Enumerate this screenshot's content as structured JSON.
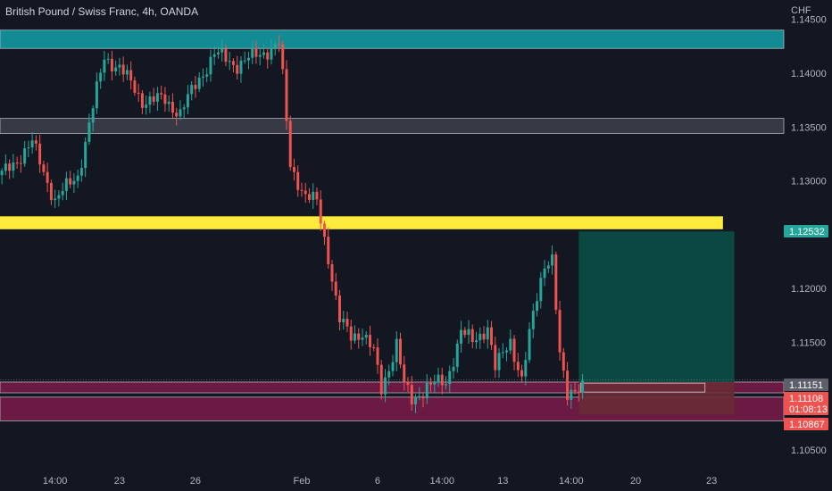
{
  "header": {
    "title": "British Pound / Swiss Franc, 4h, OANDA",
    "currency": "CHF"
  },
  "chart_data": {
    "type": "candlestick",
    "ylim": [
      1.1035,
      1.1468
    ],
    "y_ticks": [
      "1.14500",
      "1.14000",
      "1.13500",
      "1.13000",
      "1.12000",
      "1.11500",
      "1.10500"
    ],
    "y_tick_values": [
      1.145,
      1.14,
      1.135,
      1.13,
      1.12,
      1.115,
      1.105
    ],
    "x_ticks": [
      {
        "label": "14:00",
        "bar": 14
      },
      {
        "label": "23",
        "bar": 31
      },
      {
        "label": "26",
        "bar": 51
      },
      {
        "label": "Feb",
        "bar": 79
      },
      {
        "label": "6",
        "bar": 99
      },
      {
        "label": "14:00",
        "bar": 116
      },
      {
        "label": "13",
        "bar": 132
      },
      {
        "label": "14:00",
        "bar": 150
      },
      {
        "label": "20",
        "bar": 167
      },
      {
        "label": "23",
        "bar": 187
      }
    ],
    "bar_count": 207,
    "colors": {
      "up": "#26a69a",
      "down": "#ef5350",
      "background": "#131722",
      "resistance_zone": "#138b95",
      "mid_zone": "#363a45",
      "yellow_zone": "#ffeb3b",
      "support_zone": "#6b1a44",
      "target_zone": "#0b4b45",
      "stop_zone": "#6a2b35"
    },
    "zones": [
      {
        "name": "resistance",
        "from": 1.1423,
        "to": 1.144,
        "x_end_bar": 207
      },
      {
        "name": "mid",
        "from": 1.1344,
        "to": 1.1358,
        "x_end_bar": 207
      },
      {
        "name": "key-level",
        "from": 1.1255,
        "to": 1.1267,
        "x_end_bar": 190
      },
      {
        "name": "support-upper",
        "from": 1.1103,
        "to": 1.1113,
        "x_end_bar": 207
      },
      {
        "name": "support-lower",
        "from": 1.1077,
        "to": 1.1099,
        "x_end_bar": 207
      }
    ],
    "position": {
      "entry": 1.1113,
      "target": 1.1253,
      "stop": 1.1083,
      "x_start_bar": 152,
      "x_end_bar": 193
    },
    "labels": [
      {
        "text": "1.12532",
        "value": 1.12532,
        "color": "#26a69a"
      },
      {
        "text": "1.11151",
        "value": 1.11151,
        "color": "#5d606b"
      },
      {
        "text": "1.11108",
        "value": 1.11108,
        "color": "#ef5350"
      },
      {
        "text": "01:08:13",
        "value": 1.10985,
        "color": "#ef5350"
      },
      {
        "text": "1.10867",
        "value": 1.10867,
        "color": "#ef5350"
      }
    ],
    "anchors": [
      [
        0,
        1.1305
      ],
      [
        8,
        1.1335
      ],
      [
        14,
        1.1282
      ],
      [
        20,
        1.1305
      ],
      [
        27,
        1.1415
      ],
      [
        31,
        1.1405
      ],
      [
        37,
        1.1375
      ],
      [
        43,
        1.1375
      ],
      [
        47,
        1.1363
      ],
      [
        52,
        1.1395
      ],
      [
        56,
        1.1418
      ],
      [
        62,
        1.1408
      ],
      [
        68,
        1.1418
      ],
      [
        73,
        1.1427
      ],
      [
        74,
        1.1395
      ],
      [
        76,
        1.1315
      ],
      [
        80,
        1.1285
      ],
      [
        83,
        1.128
      ],
      [
        86,
        1.123
      ],
      [
        89,
        1.117
      ],
      [
        92,
        1.1155
      ],
      [
        95,
        1.116
      ],
      [
        98,
        1.114
      ],
      [
        100,
        1.1105
      ],
      [
        104,
        1.115
      ],
      [
        106,
        1.111
      ],
      [
        108,
        1.1095
      ],
      [
        112,
        1.111
      ],
      [
        117,
        1.1112
      ],
      [
        121,
        1.116
      ],
      [
        124,
        1.115
      ],
      [
        128,
        1.1165
      ],
      [
        130,
        1.1125
      ],
      [
        134,
        1.1152
      ],
      [
        137,
        1.1115
      ],
      [
        140,
        1.1175
      ],
      [
        143,
        1.1225
      ],
      [
        145,
        1.1228
      ],
      [
        147,
        1.1135
      ],
      [
        149,
        1.11
      ],
      [
        151,
        1.1109
      ],
      [
        153,
        1.1111
      ]
    ]
  }
}
